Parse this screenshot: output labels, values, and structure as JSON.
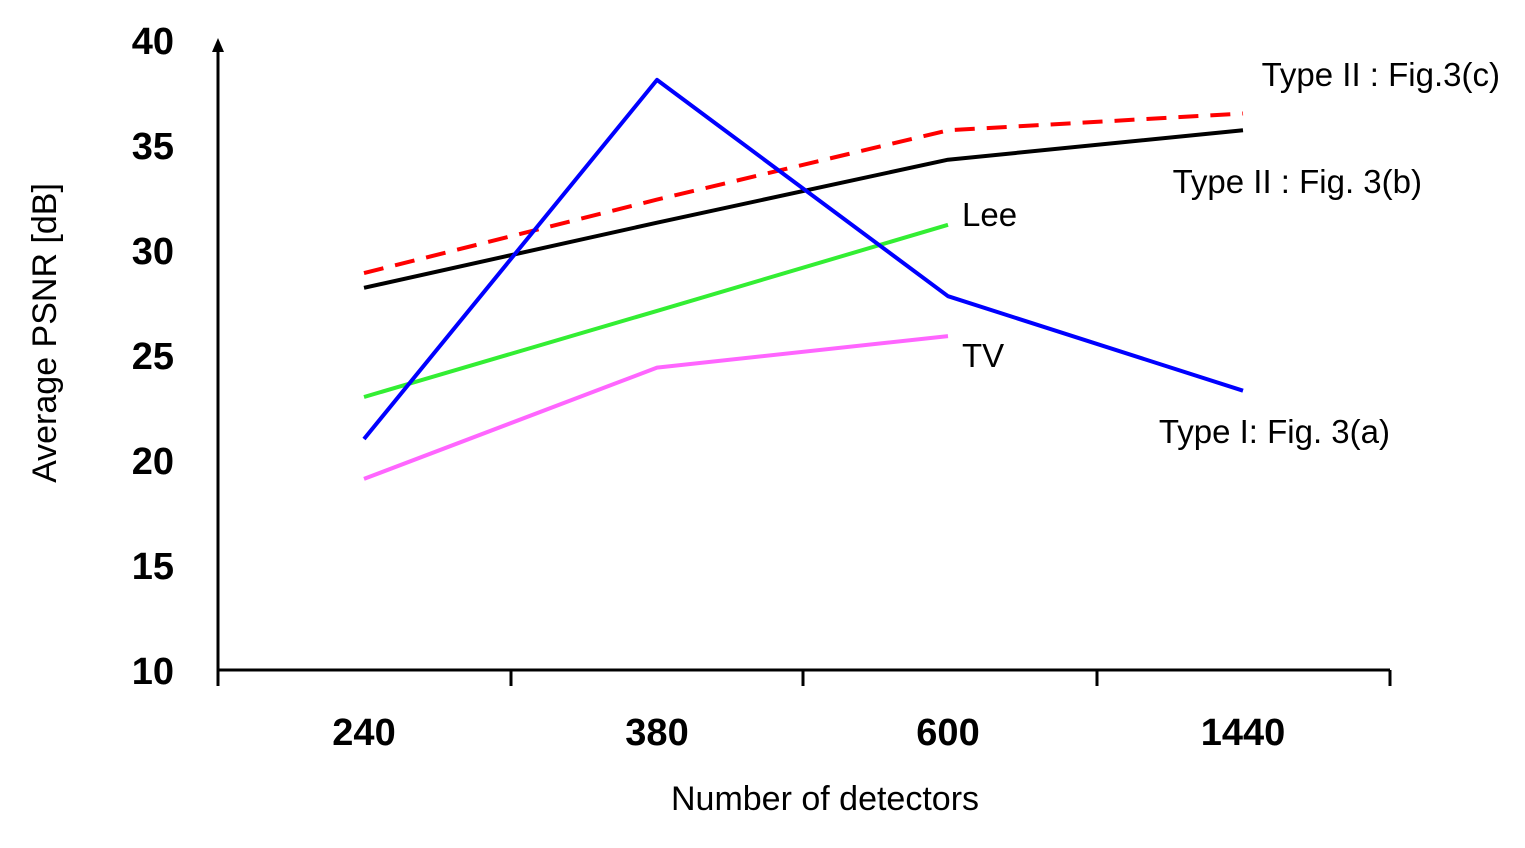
{
  "chart_data": {
    "type": "line",
    "title": "",
    "xlabel": "Number of detectors",
    "ylabel": "Average PSNR [dB]",
    "categories": [
      "240",
      "380",
      "600",
      "1440"
    ],
    "yticks": [
      10,
      15,
      20,
      25,
      30,
      35,
      40
    ],
    "ylim": [
      10,
      40
    ],
    "grid": false,
    "legend": "inline labels at line ends",
    "series": [
      {
        "name": "Type II : Fig.3(c)",
        "values": [
          28.9,
          32.4,
          35.7,
          36.5
        ],
        "color": "#ff0000",
        "dashed": true
      },
      {
        "name": "Type II : Fig. 3(b)",
        "values": [
          28.2,
          31.3,
          34.3,
          35.7
        ],
        "color": "#000000",
        "dashed": false
      },
      {
        "name": "Lee",
        "values": [
          23.0,
          27.1,
          31.2,
          null
        ],
        "color": "#33ee33",
        "dashed": false
      },
      {
        "name": "TV",
        "values": [
          19.1,
          24.4,
          25.9,
          null
        ],
        "color": "#ff66ff",
        "dashed": false
      },
      {
        "name": "Type I: Fig. 3(a)",
        "values": [
          21.0,
          38.1,
          27.8,
          23.3
        ],
        "color": "#0000ff",
        "dashed": false
      }
    ]
  }
}
